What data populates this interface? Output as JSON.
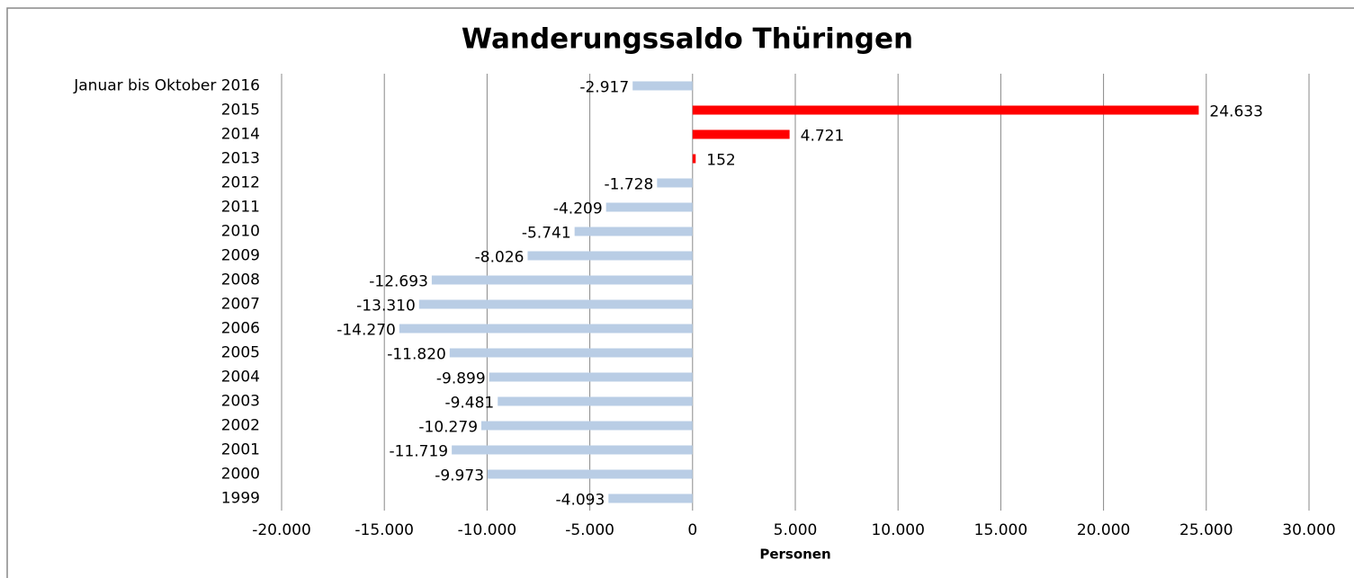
{
  "chart_data": {
    "type": "barh",
    "title": "Wanderungssaldo Thüringen",
    "x_label": "Personen",
    "categories": [
      "Januar bis Oktober 2016",
      "2015",
      "2014",
      "2013",
      "2012",
      "2011",
      "2010",
      "2009",
      "2008",
      "2007",
      "2006",
      "2005",
      "2004",
      "2003",
      "2002",
      "2001",
      "2000",
      "1999"
    ],
    "values": [
      -2917,
      24633,
      4721,
      152,
      -1728,
      -4209,
      -5741,
      -8026,
      -12693,
      -13310,
      -14270,
      -11820,
      -9899,
      -9481,
      -10279,
      -11719,
      -9973,
      -4093
    ],
    "value_labels": [
      "-2.917",
      "24.633",
      "4.721",
      "152",
      "-1.728",
      "-4.209",
      "-5.741",
      "-8.026",
      "-12.693",
      "-13.310",
      "-14.270",
      "-11.820",
      "-9.899",
      "-9.481",
      "-10.279",
      "-11.719",
      "-9.973",
      "-4.093"
    ],
    "colors": [
      "#b9cde5",
      "#ff0000",
      "#ff0000",
      "#ff0000",
      "#b9cde5",
      "#b9cde5",
      "#b9cde5",
      "#b9cde5",
      "#b9cde5",
      "#b9cde5",
      "#b9cde5",
      "#b9cde5",
      "#b9cde5",
      "#b9cde5",
      "#b9cde5",
      "#b9cde5",
      "#b9cde5",
      "#b9cde5"
    ],
    "xlim": [
      -20000,
      30000
    ],
    "xticks": [
      {
        "value": -20000,
        "label": "-20.000"
      },
      {
        "value": -15000,
        "label": "-15.000"
      },
      {
        "value": -10000,
        "label": "-10.000"
      },
      {
        "value": -5000,
        "label": "-5.000"
      },
      0,
      {
        "value": 5000,
        "label": "5.000"
      },
      {
        "value": 10000,
        "label": "10.000"
      },
      {
        "value": 15000,
        "label": "15.000"
      },
      {
        "value": 20000,
        "label": "20.000"
      },
      {
        "value": 25000,
        "label": "25.000"
      },
      {
        "value": 30000,
        "label": "30.000"
      }
    ],
    "grid": true
  }
}
